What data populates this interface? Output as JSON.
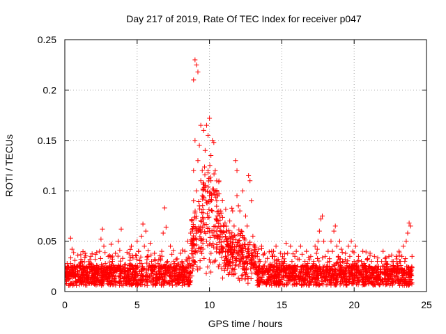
{
  "chart_data": {
    "type": "scatter",
    "title": "Day 217 of 2019, Rate Of TEC Index for receiver p047",
    "xlabel": "GPS time / hours",
    "ylabel": "ROTI / TECUs",
    "xlim": [
      0,
      25
    ],
    "ylim": [
      0,
      0.25
    ],
    "grid": true,
    "marker": "+",
    "color": "#ff0000",
    "x_ticks": [
      0,
      5,
      10,
      15,
      20,
      25
    ],
    "x_tick_labels": [
      "0",
      "5",
      "10",
      "15",
      "20",
      "25"
    ],
    "y_ticks": [
      0,
      0.05,
      0.1,
      0.15,
      0.2,
      0.25
    ],
    "y_tick_labels": [
      "0",
      "0.05",
      "0.1",
      "0.15",
      "0.2",
      "0.25"
    ],
    "series": [
      {
        "name": "ROTI",
        "points": [
          [
            0.0,
            0.012
          ],
          [
            0.1,
            0.018
          ],
          [
            0.2,
            0.022
          ],
          [
            0.3,
            0.015
          ],
          [
            0.4,
            0.028
          ],
          [
            0.4,
            0.053
          ],
          [
            0.5,
            0.042
          ],
          [
            0.6,
            0.02
          ],
          [
            0.7,
            0.031
          ],
          [
            0.8,
            0.01
          ],
          [
            0.9,
            0.036
          ],
          [
            1.0,
            0.025
          ],
          [
            1.1,
            0.014
          ],
          [
            1.2,
            0.03
          ],
          [
            1.3,
            0.019
          ],
          [
            1.4,
            0.038
          ],
          [
            1.5,
            0.024
          ],
          [
            1.6,
            0.012
          ],
          [
            1.7,
            0.027
          ],
          [
            1.8,
            0.035
          ],
          [
            1.9,
            0.02
          ],
          [
            2.0,
            0.017
          ],
          [
            2.1,
            0.032
          ],
          [
            2.2,
            0.026
          ],
          [
            2.3,
            0.014
          ],
          [
            2.4,
            0.04
          ],
          [
            2.5,
            0.052
          ],
          [
            2.6,
            0.062
          ],
          [
            2.7,
            0.045
          ],
          [
            2.8,
            0.028
          ],
          [
            2.9,
            0.019
          ],
          [
            3.0,
            0.035
          ],
          [
            3.1,
            0.024
          ],
          [
            3.2,
            0.047
          ],
          [
            3.3,
            0.03
          ],
          [
            3.4,
            0.016
          ],
          [
            3.5,
            0.038
          ],
          [
            3.6,
            0.022
          ],
          [
            3.7,
            0.05
          ],
          [
            3.8,
            0.041
          ],
          [
            3.9,
            0.062
          ],
          [
            4.0,
            0.033
          ],
          [
            4.1,
            0.02
          ],
          [
            4.2,
            0.027
          ],
          [
            4.3,
            0.039
          ],
          [
            4.4,
            0.018
          ],
          [
            4.5,
            0.031
          ],
          [
            4.6,
            0.045
          ],
          [
            4.7,
            0.025
          ],
          [
            4.8,
            0.012
          ],
          [
            4.9,
            0.036
          ],
          [
            5.0,
            0.05
          ],
          [
            5.1,
            0.04
          ],
          [
            5.2,
            0.028
          ],
          [
            5.3,
            0.055
          ],
          [
            5.4,
            0.067
          ],
          [
            5.5,
            0.045
          ],
          [
            5.6,
            0.06
          ],
          [
            5.7,
            0.035
          ],
          [
            5.8,
            0.022
          ],
          [
            5.9,
            0.048
          ],
          [
            6.0,
            0.03
          ],
          [
            6.1,
            0.018
          ],
          [
            6.2,
            0.038
          ],
          [
            6.3,
            0.025
          ],
          [
            6.4,
            0.014
          ],
          [
            6.5,
            0.032
          ],
          [
            6.6,
            0.022
          ],
          [
            6.7,
            0.04
          ],
          [
            6.8,
            0.058
          ],
          [
            6.9,
            0.083
          ],
          [
            7.0,
            0.064
          ],
          [
            7.1,
            0.03
          ],
          [
            7.2,
            0.016
          ],
          [
            7.3,
            0.045
          ],
          [
            7.4,
            0.037
          ],
          [
            7.5,
            0.024
          ],
          [
            7.6,
            0.015
          ],
          [
            7.7,
            0.032
          ],
          [
            7.8,
            0.027
          ],
          [
            7.9,
            0.019
          ],
          [
            8.0,
            0.038
          ],
          [
            8.1,
            0.03
          ],
          [
            8.2,
            0.022
          ],
          [
            8.3,
            0.04
          ],
          [
            8.4,
            0.012
          ],
          [
            8.5,
            0.05
          ],
          [
            8.6,
            0.033
          ],
          [
            8.7,
            0.058
          ],
          [
            8.8,
            0.07
          ],
          [
            8.9,
            0.09
          ],
          [
            8.9,
            0.12
          ],
          [
            8.9,
            0.21
          ],
          [
            9.0,
            0.23
          ],
          [
            9.0,
            0.078
          ],
          [
            9.0,
            0.15
          ],
          [
            9.1,
            0.225
          ],
          [
            9.1,
            0.1
          ],
          [
            9.2,
            0.218
          ],
          [
            9.2,
            0.13
          ],
          [
            9.2,
            0.06
          ],
          [
            9.3,
            0.145
          ],
          [
            9.3,
            0.085
          ],
          [
            9.4,
            0.165
          ],
          [
            9.4,
            0.11
          ],
          [
            9.4,
            0.04
          ],
          [
            9.5,
            0.12
          ],
          [
            9.5,
            0.095
          ],
          [
            9.6,
            0.16
          ],
          [
            9.6,
            0.072
          ],
          [
            9.7,
            0.14
          ],
          [
            9.7,
            0.105
          ],
          [
            9.8,
            0.165
          ],
          [
            9.8,
            0.088
          ],
          [
            9.8,
            0.05
          ],
          [
            9.9,
            0.155
          ],
          [
            9.9,
            0.12
          ],
          [
            10.0,
            0.172
          ],
          [
            10.0,
            0.095
          ],
          [
            10.0,
            0.06
          ],
          [
            10.1,
            0.135
          ],
          [
            10.1,
            0.11
          ],
          [
            10.2,
            0.15
          ],
          [
            10.2,
            0.08
          ],
          [
            10.3,
            0.148
          ],
          [
            10.3,
            0.1
          ],
          [
            10.4,
            0.12
          ],
          [
            10.4,
            0.065
          ],
          [
            10.5,
            0.09
          ],
          [
            10.5,
            0.07
          ],
          [
            10.6,
            0.055
          ],
          [
            10.7,
            0.075
          ],
          [
            10.8,
            0.045
          ],
          [
            10.9,
            0.04
          ],
          [
            11.0,
            0.05
          ],
          [
            11.1,
            0.035
          ],
          [
            11.2,
            0.06
          ],
          [
            11.3,
            0.045
          ],
          [
            11.4,
            0.07
          ],
          [
            11.5,
            0.055
          ],
          [
            11.6,
            0.08
          ],
          [
            11.7,
            0.065
          ],
          [
            11.8,
            0.13
          ],
          [
            11.9,
            0.12
          ],
          [
            11.9,
            0.095
          ],
          [
            12.0,
            0.085
          ],
          [
            12.1,
            0.08
          ],
          [
            12.2,
            0.06
          ],
          [
            12.3,
            0.1
          ],
          [
            12.4,
            0.045
          ],
          [
            12.5,
            0.075
          ],
          [
            12.6,
            0.065
          ],
          [
            12.7,
            0.115
          ],
          [
            12.8,
            0.11
          ],
          [
            12.9,
            0.09
          ],
          [
            13.0,
            0.055
          ],
          [
            13.1,
            0.045
          ],
          [
            13.2,
            0.04
          ],
          [
            13.3,
            0.035
          ],
          [
            13.4,
            0.042
          ],
          [
            13.5,
            0.03
          ],
          [
            13.6,
            0.045
          ],
          [
            13.7,
            0.025
          ],
          [
            13.8,
            0.038
          ],
          [
            13.9,
            0.02
          ],
          [
            14.0,
            0.033
          ],
          [
            14.1,
            0.015
          ],
          [
            14.2,
            0.027
          ],
          [
            14.3,
            0.04
          ],
          [
            14.4,
            0.022
          ],
          [
            14.5,
            0.035
          ],
          [
            14.6,
            0.045
          ],
          [
            14.7,
            0.02
          ],
          [
            14.8,
            0.03
          ],
          [
            14.9,
            0.038
          ],
          [
            15.0,
            0.025
          ],
          [
            15.1,
            0.015
          ],
          [
            15.2,
            0.03
          ],
          [
            15.3,
            0.048
          ],
          [
            15.4,
            0.038
          ],
          [
            15.5,
            0.022
          ],
          [
            15.6,
            0.045
          ],
          [
            15.7,
            0.03
          ],
          [
            15.8,
            0.018
          ],
          [
            15.9,
            0.035
          ],
          [
            16.0,
            0.04
          ],
          [
            16.1,
            0.025
          ],
          [
            16.2,
            0.032
          ],
          [
            16.3,
            0.045
          ],
          [
            16.4,
            0.037
          ],
          [
            16.5,
            0.022
          ],
          [
            16.6,
            0.03
          ],
          [
            16.7,
            0.04
          ],
          [
            16.8,
            0.028
          ],
          [
            16.9,
            0.015
          ],
          [
            17.0,
            0.035
          ],
          [
            17.1,
            0.024
          ],
          [
            17.2,
            0.03
          ],
          [
            17.3,
            0.045
          ],
          [
            17.4,
            0.038
          ],
          [
            17.5,
            0.05
          ],
          [
            17.6,
            0.06
          ],
          [
            17.7,
            0.072
          ],
          [
            17.8,
            0.075
          ],
          [
            17.9,
            0.05
          ],
          [
            18.0,
            0.035
          ],
          [
            18.1,
            0.025
          ],
          [
            18.2,
            0.04
          ],
          [
            18.3,
            0.03
          ],
          [
            18.4,
            0.05
          ],
          [
            18.5,
            0.04
          ],
          [
            18.6,
            0.06
          ],
          [
            18.7,
            0.065
          ],
          [
            18.8,
            0.045
          ],
          [
            18.9,
            0.035
          ],
          [
            19.0,
            0.05
          ],
          [
            19.1,
            0.042
          ],
          [
            19.2,
            0.03
          ],
          [
            19.3,
            0.02
          ],
          [
            19.4,
            0.038
          ],
          [
            19.5,
            0.028
          ],
          [
            19.6,
            0.045
          ],
          [
            19.7,
            0.035
          ],
          [
            19.8,
            0.05
          ],
          [
            19.9,
            0.04
          ],
          [
            20.0,
            0.03
          ],
          [
            20.1,
            0.045
          ],
          [
            20.2,
            0.025
          ],
          [
            20.3,
            0.035
          ],
          [
            20.4,
            0.02
          ],
          [
            20.5,
            0.03
          ],
          [
            20.6,
            0.04
          ],
          [
            20.7,
            0.028
          ],
          [
            20.8,
            0.018
          ],
          [
            20.9,
            0.032
          ],
          [
            21.0,
            0.025
          ],
          [
            21.1,
            0.038
          ],
          [
            21.2,
            0.03
          ],
          [
            21.3,
            0.022
          ],
          [
            21.4,
            0.035
          ],
          [
            21.5,
            0.02
          ],
          [
            21.6,
            0.03
          ],
          [
            21.7,
            0.025
          ],
          [
            21.8,
            0.018
          ],
          [
            21.9,
            0.03
          ],
          [
            22.0,
            0.04
          ],
          [
            22.1,
            0.025
          ],
          [
            22.2,
            0.03
          ],
          [
            22.3,
            0.02
          ],
          [
            22.4,
            0.035
          ],
          [
            22.5,
            0.025
          ],
          [
            22.6,
            0.015
          ],
          [
            22.7,
            0.03
          ],
          [
            22.8,
            0.02
          ],
          [
            22.9,
            0.035
          ],
          [
            23.0,
            0.025
          ],
          [
            23.1,
            0.04
          ],
          [
            23.2,
            0.03
          ],
          [
            23.3,
            0.035
          ],
          [
            23.4,
            0.045
          ],
          [
            23.5,
            0.03
          ],
          [
            23.6,
            0.05
          ],
          [
            23.7,
            0.058
          ],
          [
            23.8,
            0.068
          ],
          [
            23.9,
            0.065
          ],
          [
            24.0,
            0.035
          ]
        ]
      }
    ]
  }
}
